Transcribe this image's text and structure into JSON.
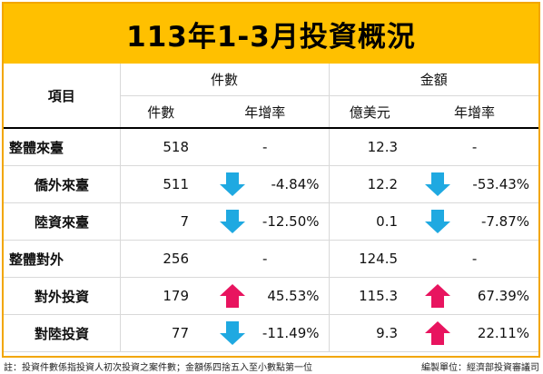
{
  "title": "113年1-3月投資概況",
  "headers": {
    "item": "項目",
    "count_group": "件數",
    "amount_group": "金額",
    "count": "件數",
    "count_growth": "年增率",
    "amount": "億美元",
    "amount_growth": "年增率"
  },
  "rows": [
    {
      "label": "整體來臺",
      "count": "518",
      "count_growth": "-",
      "count_trend": "none",
      "amount": "12.3",
      "amount_growth": "-",
      "amount_trend": "none"
    },
    {
      "label": "僑外來臺",
      "count": "511",
      "count_growth": "-4.84%",
      "count_trend": "down",
      "amount": "12.2",
      "amount_growth": "-53.43%",
      "amount_trend": "down"
    },
    {
      "label": "陸資來臺",
      "count": "7",
      "count_growth": "-12.50%",
      "count_trend": "down",
      "amount": "0.1",
      "amount_growth": "-7.87%",
      "amount_trend": "down"
    },
    {
      "label": "整體對外",
      "count": "256",
      "count_growth": "-",
      "count_trend": "none",
      "amount": "124.5",
      "amount_growth": "-",
      "amount_trend": "none"
    },
    {
      "label": "對外投資",
      "count": "179",
      "count_growth": "45.53%",
      "count_trend": "up",
      "amount": "115.3",
      "amount_growth": "67.39%",
      "amount_trend": "up"
    },
    {
      "label": "對陸投資",
      "count": "77",
      "count_growth": "-11.49%",
      "count_trend": "down",
      "amount": "9.3",
      "amount_growth": "22.11%",
      "amount_trend": "up"
    }
  ],
  "footer": {
    "note": "註：投資件數係指投資人初次投資之案件數；金額係四捨五入至小數點第一位",
    "source": "編製單位：經濟部投資審議司"
  },
  "colors": {
    "title_bg": "#ffc000",
    "frame": "#f2a600",
    "down_arrow": "#1fa9e1",
    "up_arrow": "#e8145f"
  }
}
